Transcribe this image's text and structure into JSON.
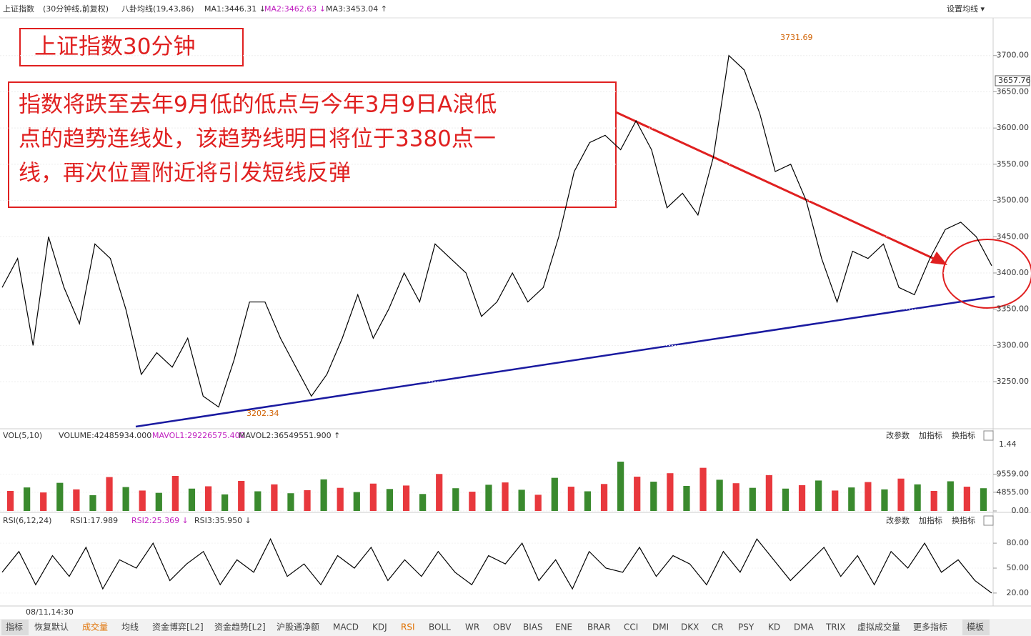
{
  "header": {
    "name": "上证指数",
    "period": "(30分钟线,前复权)",
    "ma_name": "八卦均线(19,43,86)",
    "ma1": "MA1:3446.31 ↓",
    "ma2": "MA2:3462.63 ↓",
    "ma3": "MA3:3453.04 ↑",
    "setting": "设置均线 ▾"
  },
  "annotations": {
    "title": "上证指数30分钟",
    "lines": [
      "指数将跌至去年9月低的低点与今年3月9日A浪低",
      "点的趋势连线处，该趋势线明日将位于3380点一",
      "线，再次位置附近将引发短线反弹"
    ],
    "high": "3731.69",
    "low": "3202.34",
    "last": "3657.76"
  },
  "chart_data": [
    {
      "type": "line",
      "color": "#000000",
      "ylim": [
        3187,
        3752
      ],
      "grid": true,
      "yticks": [
        {
          "value": 3250,
          "label": "3250.00"
        },
        {
          "value": 3300,
          "label": "3300.00"
        },
        {
          "value": 3350,
          "label": "3350.00"
        },
        {
          "value": 3400,
          "label": "3400.00"
        },
        {
          "value": 3450,
          "label": "3450.00"
        },
        {
          "value": 3500,
          "label": "3500.00"
        },
        {
          "value": 3550,
          "label": "3550.00"
        },
        {
          "value": 3600,
          "label": "3600.00"
        },
        {
          "value": 3650,
          "label": "3650.00"
        },
        {
          "value": 3700,
          "label": "3700.00"
        }
      ],
      "values": [
        3380,
        3420,
        3300,
        3450,
        3380,
        3330,
        3440,
        3420,
        3350,
        3260,
        3290,
        3270,
        3310,
        3230,
        3215,
        3280,
        3360,
        3360,
        3310,
        3270,
        3230,
        3260,
        3310,
        3370,
        3310,
        3350,
        3400,
        3360,
        3440,
        3420,
        3400,
        3340,
        3360,
        3400,
        3360,
        3380,
        3450,
        3540,
        3580,
        3590,
        3570,
        3610,
        3570,
        3490,
        3510,
        3480,
        3560,
        3700,
        3680,
        3620,
        3540,
        3550,
        3500,
        3420,
        3360,
        3430,
        3420,
        3440,
        3380,
        3370,
        3420,
        3460,
        3470,
        3450,
        3410
      ]
    },
    {
      "type": "bar",
      "ylim": [
        0,
        18000
      ],
      "colors": [
        "#e8383d",
        "#3a8a2e"
      ],
      "yticks": [
        {
          "value": 0,
          "label": "0.00"
        },
        {
          "value": 4855,
          "label": "4855.00"
        },
        {
          "value": 9559,
          "label": "9559.00"
        }
      ],
      "values": [
        5200,
        6100,
        4800,
        7300,
        5600,
        4100,
        8800,
        6200,
        5300,
        4700,
        9100,
        5800,
        6400,
        4300,
        7800,
        5100,
        6900,
        4600,
        5400,
        8200,
        6000,
        4900,
        7100,
        5700,
        6600,
        4400,
        9600,
        5900,
        5000,
        6800,
        7400,
        5500,
        4200,
        8600,
        6300,
        5100,
        7000,
        12800,
        8900,
        7600,
        9800,
        6500,
        11200,
        8100,
        7200,
        6000,
        9300,
        5800,
        6700,
        7900,
        5300,
        6100,
        7500,
        5600,
        8400,
        6900,
        5200,
        7700,
        6300,
        5900
      ]
    },
    {
      "type": "line",
      "color": "#000000",
      "ylim": [
        7,
        99
      ],
      "yticks": [
        {
          "value": 20,
          "label": "20.00"
        },
        {
          "value": 50,
          "label": "50.00"
        },
        {
          "value": 80,
          "label": "80.00"
        }
      ],
      "values": [
        45,
        70,
        30,
        65,
        40,
        75,
        25,
        60,
        50,
        80,
        35,
        55,
        70,
        30,
        60,
        45,
        85,
        40,
        55,
        30,
        65,
        50,
        75,
        35,
        60,
        40,
        70,
        45,
        30,
        65,
        55,
        80,
        35,
        60,
        25,
        70,
        50,
        45,
        75,
        40,
        65,
        55,
        30,
        70,
        45,
        85,
        60,
        35,
        55,
        75,
        40,
        65,
        30,
        70,
        50,
        80,
        45,
        60,
        35,
        20
      ]
    }
  ],
  "vol_header": {
    "name": "VOL(5,10)",
    "volume": "VOLUME:42485934.000",
    "mavol1": "MAVOL1:29226575.400",
    "mavol2": "MAVOL2:36549551.900 ↑",
    "scale": "1.44"
  },
  "rsi_header": {
    "name": "RSI(6,12,24)",
    "rsi1": "RSI1:17.989",
    "rsi2": "RSI2:25.369 ↓",
    "rsi3": "RSI3:35.950 ↓"
  },
  "buttons": [
    "改参数",
    "加指标",
    "换指标"
  ],
  "time": "08/11,14:30",
  "tabs": [
    "指标",
    "恢复默认",
    "成交量",
    "均线",
    "资金博弈[L2]",
    "资金趋势[L2]",
    "沪股通净额",
    "MACD",
    "KDJ",
    "RSI",
    "BOLL",
    "WR",
    "OBV",
    "BIAS",
    "ENE",
    "BRAR",
    "CCI",
    "DMI",
    "DKX",
    "CR",
    "PSY",
    "KD",
    "DMA",
    "TRIX",
    "虚拟成交量",
    "更多指标",
    "模板"
  ]
}
